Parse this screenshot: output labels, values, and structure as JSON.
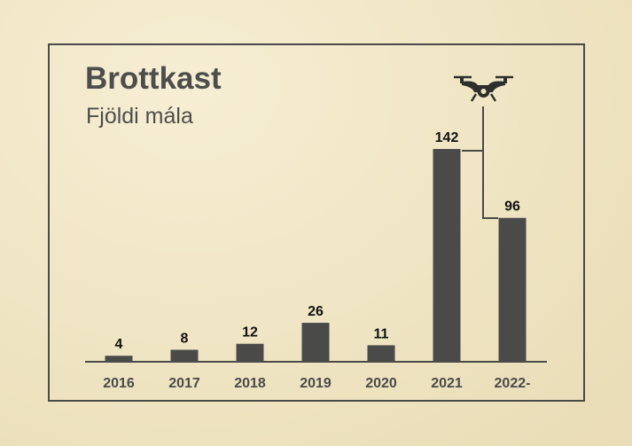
{
  "chart_data": {
    "type": "bar",
    "title": "Brottkast",
    "subtitle": "Fjöldi mála",
    "categories": [
      "2016",
      "2017",
      "2018",
      "2019",
      "2020",
      "2021",
      "2022-"
    ],
    "values": [
      4,
      8,
      12,
      26,
      11,
      142,
      96
    ],
    "ylim": [
      0,
      150
    ],
    "grid": false,
    "xlabel": "",
    "ylabel": "",
    "bar_color": "#4a4a48",
    "icon": "drone-icon"
  }
}
